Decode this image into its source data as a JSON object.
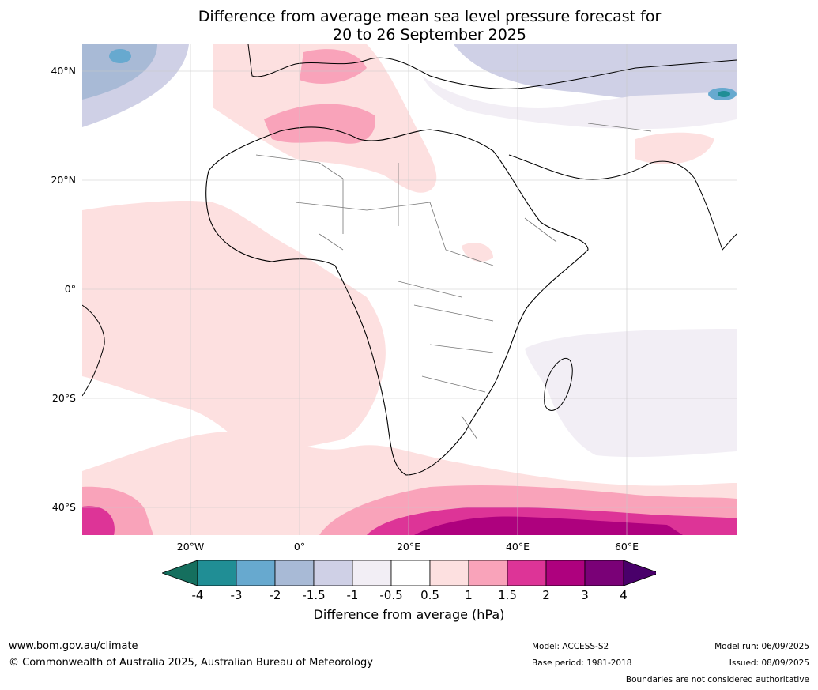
{
  "title_line1": "Difference from average mean sea level pressure forecast for",
  "title_line2": "20 to 26 September 2025",
  "map": {
    "lat_labels": [
      "40°N",
      "20°N",
      "0°",
      "20°S",
      "40°S"
    ],
    "lon_labels": [
      "20°W",
      "0°",
      "20°E",
      "40°E",
      "60°E"
    ],
    "extent": {
      "lon": [
        -40,
        80
      ],
      "lat": [
        -45,
        45
      ]
    }
  },
  "colorbar": {
    "ticks": [
      "-4",
      "-3",
      "-2",
      "-1.5",
      "-1",
      "-0.5",
      "0.5",
      "1",
      "1.5",
      "2",
      "3",
      "4"
    ],
    "colors": [
      "#156f5e",
      "#208e95",
      "#67a9cf",
      "#a8bad6",
      "#cfd0e6",
      "#f2eef5",
      "#ffffff",
      "#fde0e0",
      "#f9a3ba",
      "#dd3497",
      "#ae017e",
      "#7a0177",
      "#49006a"
    ],
    "label": "Difference from average (hPa)"
  },
  "footer": {
    "url": "www.bom.gov.au/climate",
    "copyright": "© Commonwealth of Australia 2025, Australian Bureau of Meteorology",
    "model": "Model: ACCESS-S2",
    "base_period": "Base period: 1981-2018",
    "model_run": "Model run: 06/09/2025",
    "issued": "Issued: 08/09/2025",
    "disclaimer": "Boundaries are not considered authoritative"
  }
}
